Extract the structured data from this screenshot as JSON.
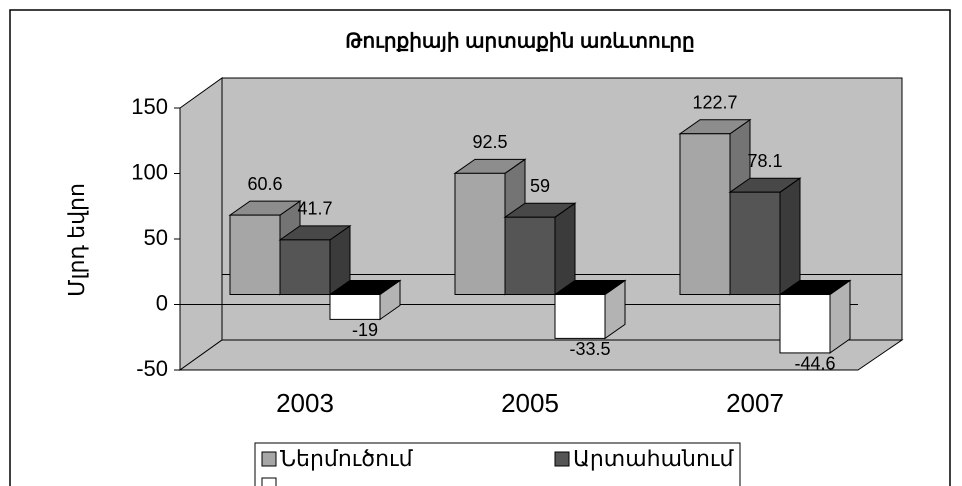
{
  "chart_data": {
    "type": "bar3d",
    "title": "Թուրքիայի արտաքին առևտուրը",
    "y_label": "Մլրդ եվրո",
    "categories": [
      "2003",
      "2005",
      "2007"
    ],
    "series": [
      {
        "name": "Ներմուծում",
        "color": "#a6a6a6",
        "values": [
          60.6,
          92.5,
          122.7
        ]
      },
      {
        "name": "Արտահանում",
        "color": "#555555",
        "values": [
          41.7,
          59,
          78.1
        ]
      },
      {
        "color": "#ffffff",
        "values": [
          -19,
          -33.5,
          -44.6
        ]
      }
    ],
    "ylim": [
      -50,
      150
    ],
    "yticks": [
      -50,
      0,
      50,
      100,
      150
    ],
    "wall_color": "#c0c0c0"
  }
}
